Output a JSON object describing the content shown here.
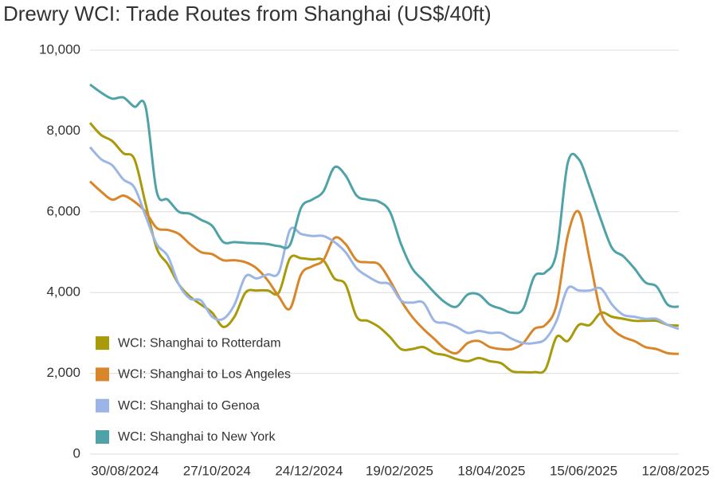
{
  "chart_data": {
    "type": "line",
    "title": "Drewry WCI: Trade Routes from Shanghai (US$/40ft)",
    "x": [
      "2024-08-08",
      "2024-08-15",
      "2024-08-22",
      "2024-08-29",
      "2024-09-05",
      "2024-09-12",
      "2024-09-19",
      "2024-09-26",
      "2024-10-03",
      "2024-10-10",
      "2024-10-17",
      "2024-10-24",
      "2024-10-31",
      "2024-11-07",
      "2024-11-14",
      "2024-11-21",
      "2024-11-28",
      "2024-12-05",
      "2024-12-12",
      "2024-12-19",
      "2024-12-26",
      "2025-01-02",
      "2025-01-09",
      "2025-01-16",
      "2025-01-23",
      "2025-01-30",
      "2025-02-06",
      "2025-02-13",
      "2025-02-20",
      "2025-02-27",
      "2025-03-06",
      "2025-03-13",
      "2025-03-20",
      "2025-03-27",
      "2025-04-03",
      "2025-04-10",
      "2025-04-17",
      "2025-04-24",
      "2025-05-01",
      "2025-05-08",
      "2025-05-15",
      "2025-05-22",
      "2025-05-29",
      "2025-06-05",
      "2025-06-12",
      "2025-06-19",
      "2025-06-26",
      "2025-07-03",
      "2025-07-10",
      "2025-07-17",
      "2025-07-24",
      "2025-07-31",
      "2025-08-07",
      "2025-08-14"
    ],
    "series": [
      {
        "name": "WCI: Shanghai to Rotterdam",
        "color": "#a89a0a",
        "values": [
          8200,
          7900,
          7750,
          7450,
          7300,
          6200,
          5100,
          4700,
          4200,
          3900,
          3700,
          3500,
          3150,
          3400,
          4000,
          4050,
          4050,
          4000,
          4850,
          4850,
          4820,
          4800,
          4350,
          4200,
          3400,
          3300,
          3150,
          2900,
          2600,
          2600,
          2650,
          2500,
          2450,
          2350,
          2300,
          2380,
          2300,
          2250,
          2050,
          2030,
          2030,
          2100,
          2900,
          2800,
          3200,
          3200,
          3500,
          3400,
          3350,
          3300,
          3300,
          3300,
          3200,
          3180
        ]
      },
      {
        "name": "WCI: Shanghai to Los Angeles",
        "color": "#d9862b",
        "values": [
          6750,
          6500,
          6300,
          6400,
          6250,
          6000,
          5600,
          5550,
          5450,
          5200,
          5000,
          4950,
          4800,
          4800,
          4750,
          4600,
          4300,
          3900,
          3600,
          4450,
          4650,
          4800,
          5350,
          5200,
          4800,
          4750,
          4700,
          4300,
          3800,
          3400,
          3100,
          2850,
          2600,
          2500,
          2750,
          2800,
          2650,
          2600,
          2600,
          2750,
          3100,
          3200,
          3700,
          5400,
          6000,
          4800,
          3500,
          3100,
          2900,
          2800,
          2650,
          2600,
          2500,
          2480
        ]
      },
      {
        "name": "WCI: Shanghai to Genoa",
        "color": "#9bb5e6",
        "values": [
          7600,
          7300,
          7150,
          6800,
          6600,
          5900,
          5200,
          4900,
          4200,
          3850,
          3800,
          3400,
          3350,
          3700,
          4400,
          4350,
          4450,
          4500,
          5550,
          5450,
          5400,
          5400,
          5250,
          5000,
          4600,
          4400,
          4250,
          4200,
          3800,
          3750,
          3750,
          3300,
          3250,
          3150,
          3000,
          3050,
          3000,
          3000,
          2850,
          2750,
          2750,
          2850,
          3300,
          4100,
          4050,
          4050,
          4100,
          3700,
          3450,
          3400,
          3350,
          3350,
          3200,
          3100
        ]
      },
      {
        "name": "WCI: Shanghai to New York",
        "color": "#4fa3a8",
        "values": [
          9150,
          8950,
          8800,
          8830,
          8600,
          8600,
          6500,
          6300,
          6000,
          5950,
          5800,
          5650,
          5250,
          5250,
          5230,
          5220,
          5200,
          5150,
          5180,
          6100,
          6300,
          6500,
          7100,
          6900,
          6400,
          6300,
          6250,
          6000,
          5200,
          4600,
          4300,
          4000,
          3750,
          3650,
          3950,
          3950,
          3700,
          3600,
          3500,
          3600,
          4400,
          4500,
          5000,
          7200,
          7300,
          6600,
          5800,
          5100,
          4900,
          4600,
          4250,
          4150,
          3700,
          3650
        ]
      }
    ],
    "xlim": [
      "2024-08-08",
      "2025-08-14"
    ],
    "xticks": [
      {
        "value": "2024-08-30",
        "label": "30/08/2024"
      },
      {
        "value": "2024-10-27",
        "label": "27/10/2024"
      },
      {
        "value": "2024-12-24",
        "label": "24/12/2024"
      },
      {
        "value": "2025-02-19",
        "label": "19/02/2025"
      },
      {
        "value": "2025-04-18",
        "label": "18/04/2025"
      },
      {
        "value": "2025-06-15",
        "label": "15/06/2025"
      },
      {
        "value": "2025-08-12",
        "label": "12/08/2025"
      }
    ],
    "ylim": [
      0,
      10000
    ],
    "yticks": [
      0,
      {
        "value": 2000,
        "label": "2,000"
      },
      {
        "value": 4000,
        "label": "4,000"
      },
      {
        "value": 6000,
        "label": "6,000"
      },
      {
        "value": 8000,
        "label": "8,000"
      },
      {
        "value": 10000,
        "label": "10,000"
      }
    ],
    "grid": true,
    "legend": "lower left"
  }
}
